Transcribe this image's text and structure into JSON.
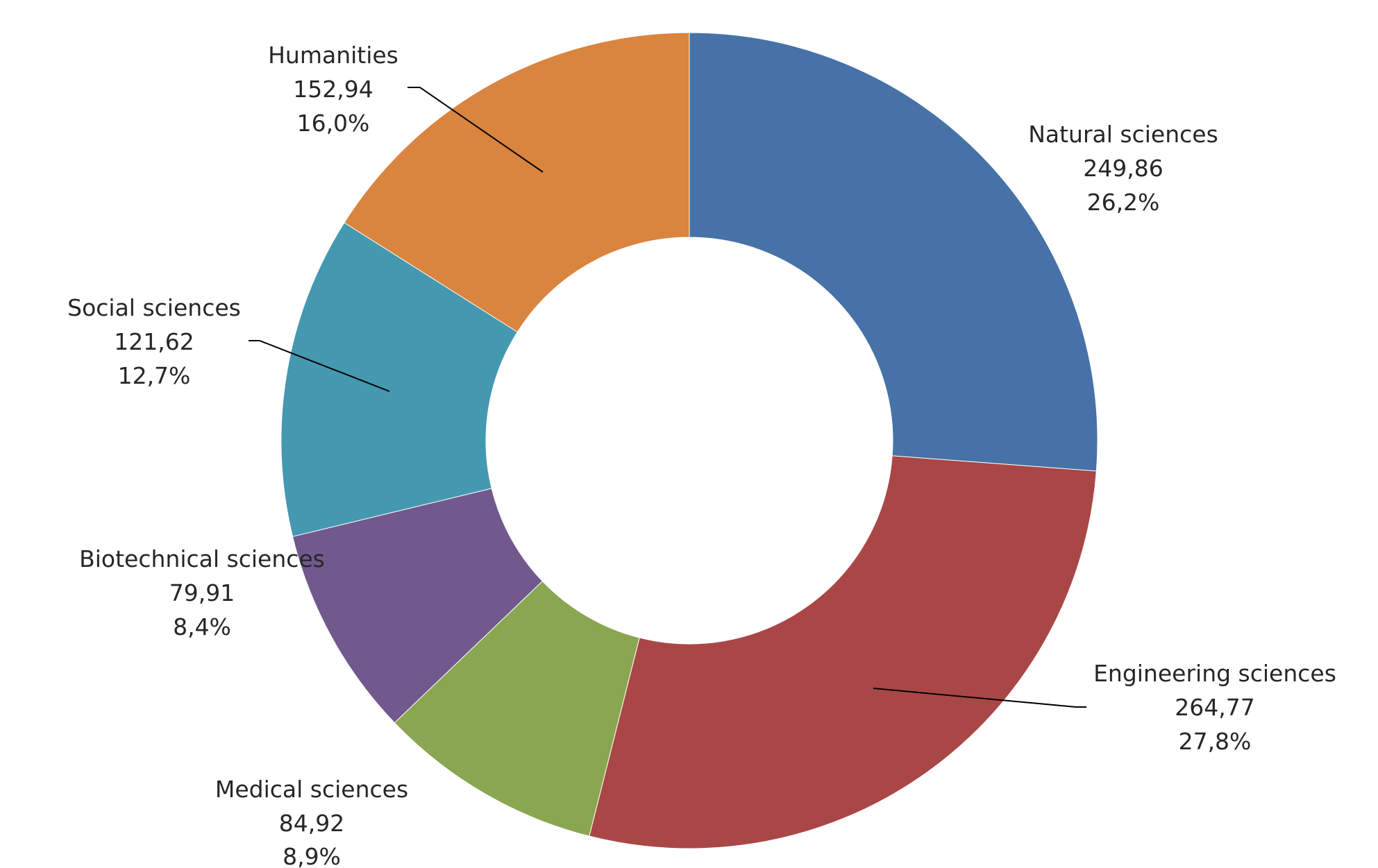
{
  "chart_data": {
    "type": "pie",
    "variant": "donut",
    "legend": "none",
    "slices": [
      {
        "category": "Natural sciences",
        "value": 249.86,
        "value_label": "249,86",
        "percent_label": "26,2%",
        "color": "#4672A7"
      },
      {
        "category": "Engineering sciences",
        "value": 264.77,
        "value_label": "264,77",
        "percent_label": "27,8%",
        "color": "#A94746"
      },
      {
        "category": "Medical sciences",
        "value": 84.92,
        "value_label": "84,92",
        "percent_label": "8,9%",
        "color": "#8AA651"
      },
      {
        "category": "Biotechnical sciences",
        "value": 79.91,
        "value_label": "79,91",
        "percent_label": "8,4%",
        "color": "#71598D"
      },
      {
        "category": "Social sciences",
        "value": 121.62,
        "value_label": "121,62",
        "percent_label": "12,7%",
        "color": "#4498B0"
      },
      {
        "category": "Humanities",
        "value": 152.94,
        "value_label": "152,94",
        "percent_label": "16,0%",
        "color": "#D9843F"
      }
    ]
  }
}
